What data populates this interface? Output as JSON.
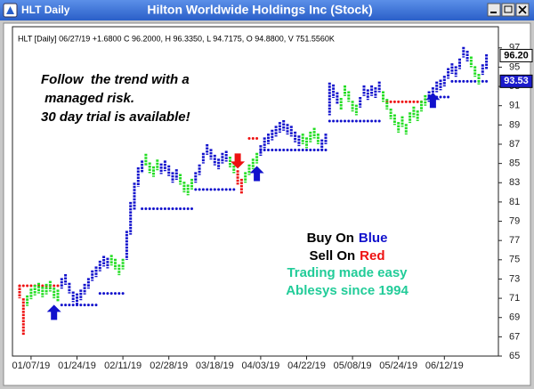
{
  "chart_data": {
    "type": "ohlc",
    "window_title": "HLT Daily",
    "title": "Hilton Worldwide Holdings Inc (Stock)",
    "subtitle": "HLT [Daily] 06/27/19 +1.6800 C 96.2000, H 96.3350, L 94.7175, O 94.8800, V 751.5560K",
    "annotations": {
      "promo": [
        "Follow  the trend with a",
        " managed risk.",
        "30 day trial is available!"
      ],
      "buy": [
        "Buy On",
        "Blue"
      ],
      "sell": [
        "Sell On",
        "Red"
      ],
      "slogan": [
        "Trading made easy",
        "Ablesys since 1994"
      ]
    },
    "categories": [
      null,
      null,
      null,
      "01/07/19",
      null,
      null,
      null,
      null,
      null,
      null,
      null,
      null,
      null,
      null,
      null,
      "01/24/19",
      null,
      null,
      null,
      null,
      null,
      null,
      null,
      null,
      null,
      null,
      null,
      "02/11/19",
      null,
      null,
      null,
      null,
      null,
      null,
      null,
      null,
      null,
      null,
      null,
      "02/28/19",
      null,
      null,
      null,
      null,
      null,
      null,
      null,
      null,
      null,
      null,
      null,
      "03/18/19",
      null,
      null,
      null,
      null,
      null,
      null,
      null,
      null,
      null,
      null,
      null,
      "04/03/19",
      null,
      null,
      null,
      null,
      null,
      null,
      null,
      null,
      null,
      null,
      null,
      "04/22/19",
      null,
      null,
      null,
      null,
      null,
      null,
      null,
      null,
      null,
      null,
      null,
      "05/08/19",
      null,
      null,
      null,
      null,
      null,
      null,
      null,
      null,
      null,
      null,
      null,
      "05/24/19",
      null,
      null,
      null,
      null,
      null,
      null,
      null,
      null,
      null,
      null,
      null,
      "06/12/19",
      null,
      null,
      null,
      null,
      null,
      null,
      null,
      null,
      null,
      null,
      null
    ],
    "high": [
      72.4,
      71.0,
      71.3,
      72.0,
      72.4,
      72.6,
      72.2,
      72.5,
      72.8,
      72.1,
      71.9,
      73.1,
      73.5,
      72.6,
      71.7,
      71.5,
      71.9,
      72.5,
      73.1,
      73.9,
      74.3,
      74.9,
      75.4,
      75.2,
      75.5,
      75.1,
      74.5,
      75.1,
      78.0,
      81.0,
      83.0,
      84.6,
      85.3,
      86.0,
      85.1,
      84.7,
      85.4,
      85.0,
      85.3,
      84.8,
      84.1,
      84.4,
      83.9,
      83.1,
      82.8,
      83.4,
      84.1,
      84.9,
      86.1,
      87.0,
      86.5,
      85.9,
      85.5,
      86.1,
      86.3,
      85.7,
      85.1,
      84.3,
      83.4,
      84.1,
      84.9,
      85.5,
      86.1,
      86.9,
      87.7,
      88.1,
      88.5,
      88.9,
      89.3,
      89.5,
      89.1,
      88.9,
      88.3,
      87.9,
      88.1,
      87.7,
      88.3,
      88.7,
      88.1,
      87.5,
      88.1,
      93.4,
      93.2,
      92.4,
      91.8,
      93.1,
      92.5,
      91.5,
      91.1,
      91.9,
      93.1,
      92.7,
      93.1,
      92.9,
      93.5,
      92.5,
      91.7,
      90.7,
      90.1,
      89.3,
      89.9,
      89.1,
      90.3,
      90.9,
      90.5,
      91.5,
      92.1,
      92.5,
      92.9,
      93.5,
      93.7,
      94.1,
      94.9,
      95.4,
      95.1,
      95.9,
      97.1,
      96.7,
      96.1,
      95.1,
      94.3,
      95.3,
      96.335
    ],
    "low": [
      71.0,
      67.2,
      70.2,
      70.9,
      71.3,
      71.5,
      71.1,
      71.4,
      71.7,
      71.0,
      70.6,
      72.0,
      72.4,
      71.5,
      70.6,
      70.4,
      70.8,
      71.4,
      72.0,
      72.8,
      73.2,
      73.8,
      74.3,
      74.1,
      74.4,
      74.0,
      73.4,
      74.0,
      75.0,
      77.6,
      80.2,
      82.6,
      84.0,
      84.8,
      84.0,
      83.6,
      84.3,
      83.9,
      84.2,
      83.7,
      83.0,
      83.3,
      82.8,
      82.0,
      81.7,
      82.3,
      83.0,
      83.8,
      85.0,
      85.9,
      85.4,
      84.8,
      84.4,
      85.0,
      85.2,
      84.6,
      84.0,
      82.8,
      81.8,
      83.0,
      83.8,
      84.4,
      85.0,
      85.8,
      86.6,
      87.0,
      87.4,
      87.8,
      88.2,
      88.4,
      88.0,
      87.8,
      87.2,
      86.8,
      87.0,
      86.6,
      87.2,
      87.6,
      87.0,
      86.4,
      87.0,
      90.0,
      91.8,
      91.2,
      90.6,
      92.0,
      91.4,
      90.4,
      90.0,
      90.8,
      92.0,
      91.6,
      92.0,
      91.8,
      92.4,
      91.4,
      90.6,
      89.6,
      89.0,
      88.2,
      88.8,
      88.0,
      89.2,
      89.8,
      89.4,
      90.4,
      91.0,
      91.4,
      91.8,
      92.4,
      92.6,
      93.0,
      93.8,
      94.3,
      94.0,
      94.8,
      96.0,
      95.6,
      95.0,
      94.0,
      93.2,
      94.2,
      94.7175
    ],
    "bar_colors": [
      "#e11",
      "#e11",
      "#2d2",
      "#2d2",
      "#2d2",
      "#2d2",
      "#2d2",
      "#2d2",
      "#2d2",
      "#2d2",
      "#2d2",
      "#11c",
      "#11c",
      "#11c",
      "#11c",
      "#11c",
      "#11c",
      "#11c",
      "#11c",
      "#11c",
      "#11c",
      "#11c",
      "#11c",
      "#11c",
      "#2d2",
      "#2d2",
      "#2d2",
      "#2d2",
      "#11c",
      "#11c",
      "#11c",
      "#11c",
      "#11c",
      "#2d2",
      "#2d2",
      "#2d2",
      "#2d2",
      "#11c",
      "#11c",
      "#11c",
      "#11c",
      "#11c",
      "#2d2",
      "#2d2",
      "#2d2",
      "#2d2",
      "#11c",
      "#11c",
      "#11c",
      "#11c",
      "#11c",
      "#11c",
      "#11c",
      "#11c",
      "#11c",
      "#2d2",
      "#2d2",
      "#e11",
      "#e11",
      "#2d2",
      "#2d2",
      "#2d2",
      "#2d2",
      "#11c",
      "#11c",
      "#11c",
      "#11c",
      "#11c",
      "#11c",
      "#11c",
      "#11c",
      "#11c",
      "#11c",
      "#11c",
      "#2d2",
      "#2d2",
      "#2d2",
      "#2d2",
      "#2d2",
      "#11c",
      "#11c",
      "#11c",
      "#11c",
      "#11c",
      "#2d2",
      "#2d2",
      "#2d2",
      "#2d2",
      "#2d2",
      "#11c",
      "#11c",
      "#11c",
      "#11c",
      "#11c",
      "#11c",
      "#2d2",
      "#2d2",
      "#2d2",
      "#2d2",
      "#2d2",
      "#2d2",
      "#2d2",
      "#2d2",
      "#2d2",
      "#2d2",
      "#2d2",
      "#2d2",
      "#11c",
      "#11c",
      "#11c",
      "#11c",
      "#11c",
      "#11c",
      "#11c",
      "#11c",
      "#11c",
      "#11c",
      "#11c",
      "#2d2",
      "#2d2",
      "#2d2",
      "#11c",
      "#11c"
    ],
    "stops": [
      {
        "color": "#11c",
        "values": [
          null,
          null,
          null,
          null,
          null,
          null,
          null,
          null,
          null,
          null,
          null,
          70.3,
          70.3,
          70.3,
          70.3,
          70.3,
          70.3,
          70.3,
          70.3,
          70.3,
          70.3,
          71.5,
          71.5,
          71.5,
          71.5,
          71.5,
          71.5,
          71.5,
          null,
          null,
          null,
          null,
          80.3,
          80.3,
          80.3,
          80.3,
          80.3,
          80.3,
          80.3,
          80.3,
          80.3,
          80.3,
          80.3,
          80.3,
          80.3,
          80.3,
          82.3,
          82.3,
          82.3,
          82.3,
          82.3,
          82.3,
          82.3,
          82.3,
          82.3,
          82.3,
          82.3,
          null,
          null,
          null,
          null,
          null,
          null,
          86.4,
          86.4,
          86.4,
          86.4,
          86.4,
          86.4,
          86.4,
          86.4,
          86.4,
          86.4,
          86.4,
          86.4,
          86.4,
          86.4,
          86.4,
          86.4,
          86.4,
          86.4,
          89.4,
          89.4,
          89.4,
          89.4,
          89.4,
          89.4,
          89.4,
          89.4,
          89.4,
          89.4,
          89.4,
          89.4,
          89.4,
          89.4,
          null,
          null,
          null,
          null,
          null,
          null,
          null,
          null,
          null,
          null,
          null,
          null,
          91.9,
          91.9,
          91.9,
          91.9,
          91.9,
          91.9,
          93.53,
          93.53,
          93.53,
          93.53,
          93.53,
          93.53,
          93.53,
          93.53,
          93.53,
          93.53
        ]
      },
      {
        "color": "#e11",
        "values": [
          72.3,
          72.3,
          72.3,
          72.3,
          72.3,
          72.3,
          72.3,
          72.3,
          72.3,
          72.3,
          72.3,
          null,
          null,
          null,
          null,
          null,
          null,
          null,
          null,
          null,
          null,
          null,
          null,
          null,
          null,
          null,
          null,
          null,
          null,
          null,
          null,
          null,
          null,
          null,
          null,
          null,
          null,
          null,
          null,
          null,
          null,
          null,
          null,
          null,
          null,
          null,
          null,
          null,
          null,
          null,
          null,
          null,
          null,
          null,
          null,
          null,
          null,
          null,
          null,
          null,
          87.6,
          87.6,
          87.6,
          null,
          null,
          null,
          null,
          null,
          null,
          null,
          null,
          null,
          null,
          null,
          null,
          null,
          null,
          null,
          null,
          null,
          null,
          null,
          null,
          null,
          null,
          null,
          null,
          null,
          null,
          null,
          null,
          null,
          null,
          null,
          null,
          null,
          91.4,
          91.4,
          91.4,
          91.4,
          91.4,
          91.4,
          91.4,
          91.4,
          91.4,
          91.4,
          null,
          null,
          null,
          null,
          null,
          null,
          null,
          null,
          null,
          null,
          null,
          null,
          null,
          null,
          null,
          null,
          null
        ]
      }
    ],
    "arrows": [
      {
        "index": 9,
        "value": 69.5,
        "direction": "up",
        "color": "#11c"
      },
      {
        "index": 57,
        "value": 85.3,
        "direction": "down",
        "color": "#e11"
      },
      {
        "index": 62,
        "value": 83.9,
        "direction": "up",
        "color": "#11c"
      },
      {
        "index": 108,
        "value": 91.5,
        "direction": "up",
        "color": "#11c"
      }
    ],
    "price_markers": [
      {
        "value": 96.2,
        "label": "96.20",
        "color": "#ffffff",
        "text_color": "#000000"
      },
      {
        "value": 93.53,
        "label": "93.53",
        "color": "#1c1ccc",
        "text_color": "#ffffff"
      }
    ],
    "ylim": [
      65,
      99.2
    ],
    "yticks": [
      65,
      67,
      69,
      71,
      73,
      75,
      77,
      79,
      81,
      83,
      85,
      87,
      89,
      91,
      93,
      95,
      97
    ]
  }
}
